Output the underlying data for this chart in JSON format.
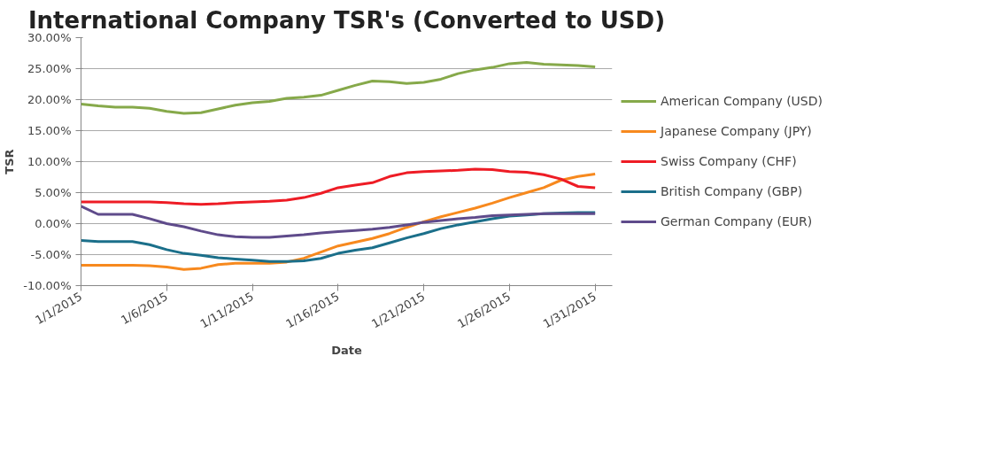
{
  "chart_data": {
    "type": "line",
    "title": "International Company TSR's (Converted to USD)",
    "xlabel": "Date",
    "ylabel": "TSR",
    "x": [
      "2015-01-01",
      "2015-01-02",
      "2015-01-03",
      "2015-01-04",
      "2015-01-05",
      "2015-01-06",
      "2015-01-07",
      "2015-01-08",
      "2015-01-09",
      "2015-01-10",
      "2015-01-11",
      "2015-01-12",
      "2015-01-13",
      "2015-01-14",
      "2015-01-15",
      "2015-01-16",
      "2015-01-17",
      "2015-01-18",
      "2015-01-19",
      "2015-01-20",
      "2015-01-21",
      "2015-01-22",
      "2015-01-23",
      "2015-01-24",
      "2015-01-25",
      "2015-01-26",
      "2015-01-27",
      "2015-01-28",
      "2015-01-29",
      "2015-01-30",
      "2015-01-31"
    ],
    "series": [
      {
        "name": "American Company (USD)",
        "color": "#86a94a",
        "values": [
          19.3,
          19.0,
          18.8,
          18.8,
          18.6,
          18.1,
          17.8,
          17.9,
          18.5,
          19.1,
          19.5,
          19.7,
          20.2,
          20.4,
          20.7,
          21.5,
          22.3,
          23.0,
          22.9,
          22.6,
          22.8,
          23.3,
          24.2,
          24.8,
          25.2,
          25.8,
          26.0,
          25.7,
          25.6,
          25.5,
          25.3
        ]
      },
      {
        "name": "Japanese Company (JPY)",
        "color": "#f7891e",
        "values": [
          -6.7,
          -6.7,
          -6.7,
          -6.7,
          -6.8,
          -7.0,
          -7.4,
          -7.2,
          -6.6,
          -6.4,
          -6.4,
          -6.4,
          -6.2,
          -5.6,
          -4.6,
          -3.6,
          -3.0,
          -2.4,
          -1.6,
          -0.6,
          0.3,
          1.1,
          1.8,
          2.5,
          3.3,
          4.2,
          5.0,
          5.8,
          7.0,
          7.6,
          8.0
        ]
      },
      {
        "name": "Swiss Company (CHF)",
        "color": "#ee1c25",
        "values": [
          3.5,
          3.5,
          3.5,
          3.5,
          3.5,
          3.4,
          3.2,
          3.1,
          3.2,
          3.4,
          3.5,
          3.6,
          3.8,
          4.2,
          4.9,
          5.8,
          6.2,
          6.6,
          7.6,
          8.2,
          8.4,
          8.5,
          8.6,
          8.8,
          8.7,
          8.4,
          8.3,
          7.9,
          7.2,
          6.0,
          5.8
        ]
      },
      {
        "name": "British Company (GBP)",
        "color": "#1b6f8a",
        "values": [
          -2.7,
          -2.9,
          -2.9,
          -2.9,
          -3.4,
          -4.2,
          -4.8,
          -5.1,
          -5.5,
          -5.7,
          -5.9,
          -6.1,
          -6.1,
          -6.0,
          -5.6,
          -4.8,
          -4.3,
          -3.9,
          -3.1,
          -2.3,
          -1.6,
          -0.8,
          -0.2,
          0.3,
          0.8,
          1.2,
          1.4,
          1.6,
          1.7,
          1.8,
          1.8
        ]
      },
      {
        "name": "German Company (EUR)",
        "color": "#5f4b8b",
        "values": [
          2.8,
          1.5,
          1.5,
          1.5,
          0.8,
          0.0,
          -0.5,
          -1.2,
          -1.8,
          -2.1,
          -2.2,
          -2.2,
          -2.0,
          -1.8,
          -1.5,
          -1.3,
          -1.1,
          -0.9,
          -0.6,
          -0.2,
          0.2,
          0.5,
          0.8,
          1.0,
          1.3,
          1.4,
          1.5,
          1.6,
          1.6,
          1.6,
          1.6
        ]
      }
    ],
    "xlim": [
      "2015-01-01",
      "2015-02-01"
    ],
    "xticks": [
      {
        "value": "2015-01-01",
        "label": "1/1/2015"
      },
      {
        "value": "2015-01-06",
        "label": "1/6/2015"
      },
      {
        "value": "2015-01-11",
        "label": "1/11/2015"
      },
      {
        "value": "2015-01-16",
        "label": "1/16/2015"
      },
      {
        "value": "2015-01-21",
        "label": "1/21/2015"
      },
      {
        "value": "2015-01-26",
        "label": "1/26/2015"
      },
      {
        "value": "2015-01-31",
        "label": "1/31/2015"
      }
    ],
    "ylim": [
      -10,
      30
    ],
    "yticks": [
      {
        "value": -10,
        "label": "-10.00%"
      },
      {
        "value": -5,
        "label": "-5.00%"
      },
      {
        "value": 0,
        "label": "0.00%"
      },
      {
        "value": 5,
        "label": "5.00%"
      },
      {
        "value": 10,
        "label": "10.00%"
      },
      {
        "value": 15,
        "label": "15.00%"
      },
      {
        "value": 20,
        "label": "20.00%"
      },
      {
        "value": 25,
        "label": "25.00%"
      },
      {
        "value": 30,
        "label": "30.00%"
      }
    ],
    "grid": "y",
    "legend": "right",
    "marker": "none",
    "line_style": "solid"
  }
}
